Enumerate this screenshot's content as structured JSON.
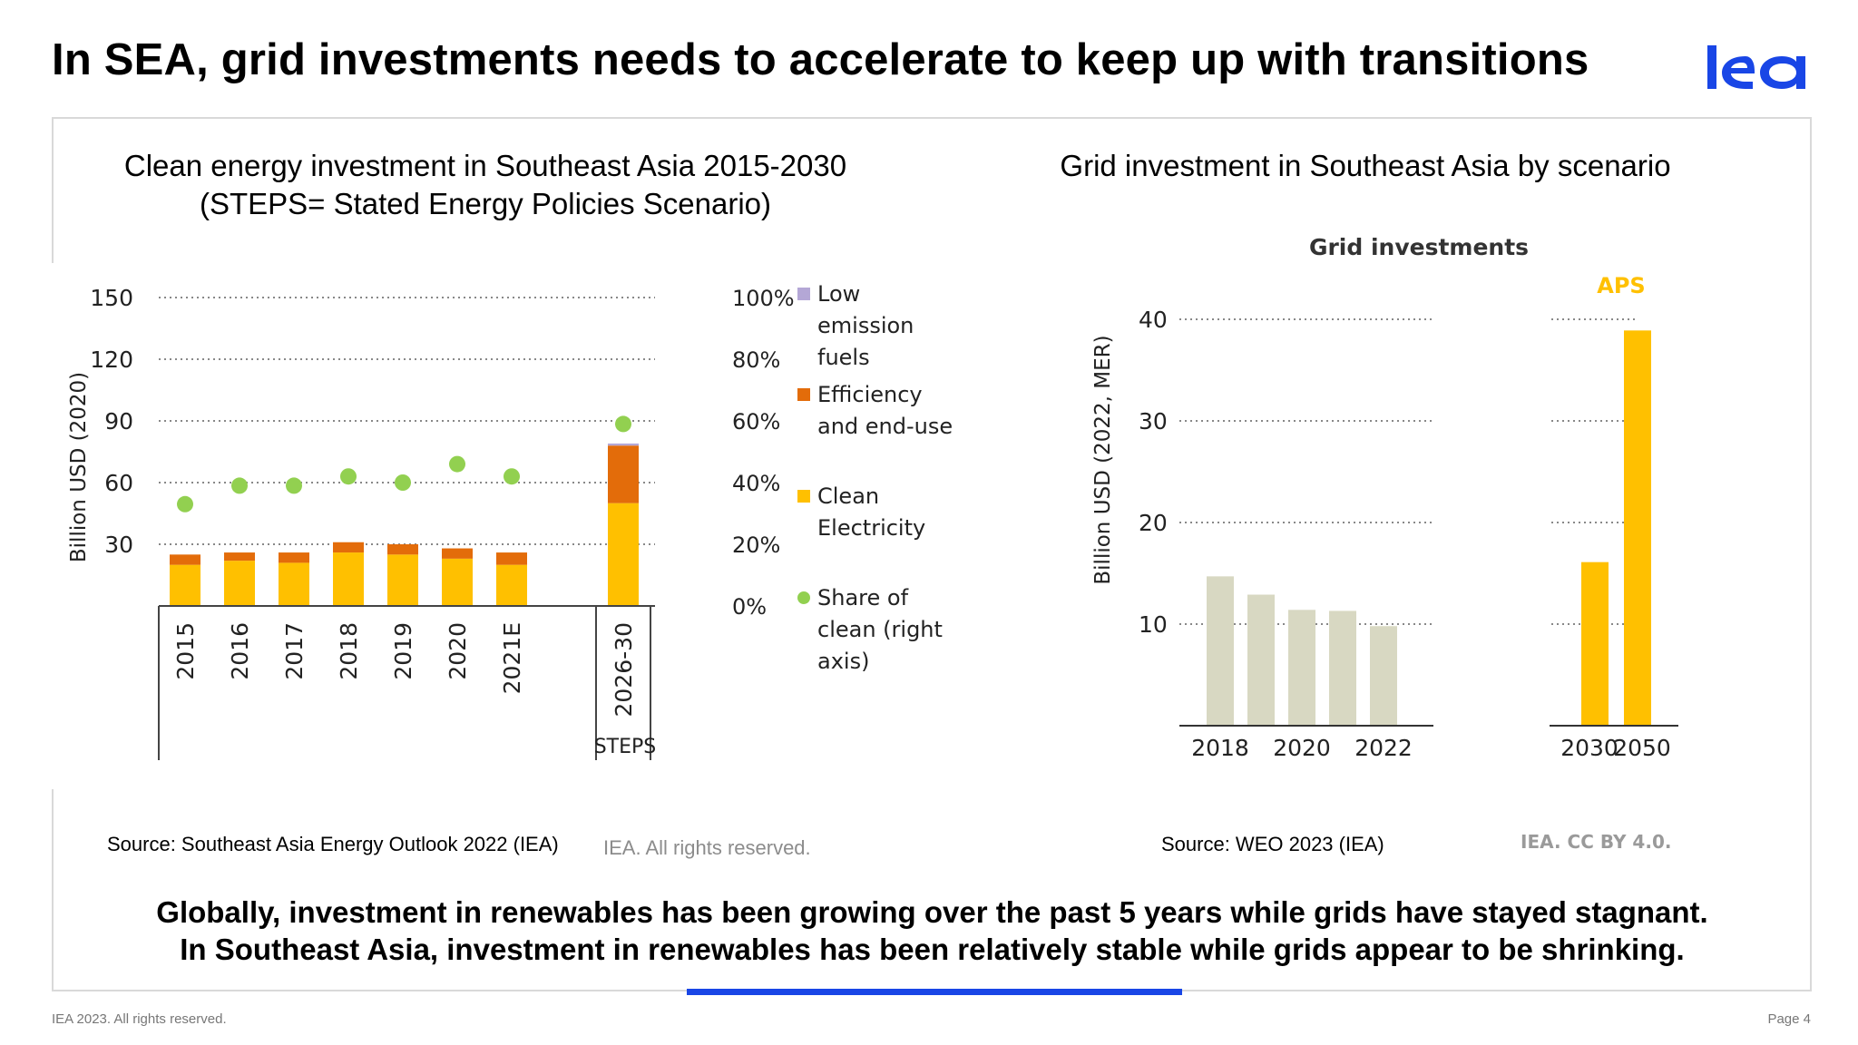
{
  "slide": {
    "title": "In SEA, grid investments needs to accelerate to keep up with transitions",
    "logo_text": "iea",
    "brand_color": "#1946e6",
    "summary_line1": "Globally, investment in renewables has been growing over the past 5 years while grids have stayed stagnant.",
    "summary_line2": "In Southeast Asia, investment in renewables has been relatively stable while grids appear to be shrinking.",
    "footer_left": "IEA 2023. All rights reserved.",
    "footer_right": "Page 4"
  },
  "left_panel": {
    "title_line1": "Clean energy investment in Southeast Asia 2015-2030",
    "title_line2": "(STEPS= Stated Energy Policies Scenario)",
    "source": "Source: Southeast Asia Energy Outlook 2022 (IEA)",
    "credit": "IEA. All rights reserved."
  },
  "right_panel": {
    "title": "Grid investment in Southeast Asia by scenario",
    "source": "Source: WEO 2023 (IEA)",
    "credit": "IEA. CC BY 4.0."
  },
  "chart_data": [
    {
      "type": "bar",
      "stacked": true,
      "ylabel": "Billion USD (2020)",
      "ylim": [
        0,
        150
      ],
      "yticks": [
        30,
        60,
        90,
        120,
        150
      ],
      "y2lim": [
        0,
        100
      ],
      "y2ticks": [
        "0%",
        "20%",
        "40%",
        "60%",
        "80%",
        "100%"
      ],
      "categories": [
        "2015",
        "2016",
        "2017",
        "2018",
        "2019",
        "2020",
        "2021E",
        "2026-30"
      ],
      "group_label": "STEPS",
      "grid": true,
      "legend_position": "right",
      "series": [
        {
          "name": "Low emission fuels",
          "color": "#b4a7d6",
          "values": [
            0,
            0,
            0,
            0,
            0,
            0,
            0,
            1
          ]
        },
        {
          "name": "Efficiency and end-use",
          "color": "#e36c0a",
          "values": [
            5,
            4,
            5,
            5,
            5,
            5,
            6,
            28
          ]
        },
        {
          "name": "Clean Electricity",
          "color": "#ffc000",
          "values": [
            20,
            22,
            21,
            26,
            25,
            23,
            20,
            50
          ]
        },
        {
          "name": "Share of clean (right axis)",
          "color": "#92d050",
          "type": "scatter",
          "axis": "right",
          "values": [
            33,
            39,
            39,
            42,
            40,
            46,
            42,
            59
          ]
        }
      ],
      "legend_lines": [
        [
          "Low",
          "emission",
          "fuels"
        ],
        [
          "Efficiency",
          "and end-use"
        ],
        [
          "Clean",
          "Electricity"
        ],
        [
          "Share of",
          "clean (right",
          "axis)"
        ]
      ]
    },
    {
      "type": "bar",
      "title": "Grid investments",
      "ylabel": "Billion USD (2022, MER)",
      "ylim": [
        0,
        40
      ],
      "yticks": [
        10,
        20,
        30,
        40
      ],
      "grid": true,
      "groups": [
        {
          "categories": [
            "2018",
            "2019",
            "2020",
            "2021",
            "2022"
          ],
          "tick_labels": [
            "2018",
            "2020",
            "2022"
          ],
          "values": [
            14.7,
            12.9,
            11.4,
            11.3,
            9.8
          ],
          "color": "#d8d8c2"
        },
        {
          "name": "APS",
          "categories": [
            "2030",
            "2050"
          ],
          "tick_labels": [
            "2030",
            "2050"
          ],
          "values": [
            16.1,
            38.9
          ],
          "color": "#ffc000"
        }
      ]
    }
  ]
}
